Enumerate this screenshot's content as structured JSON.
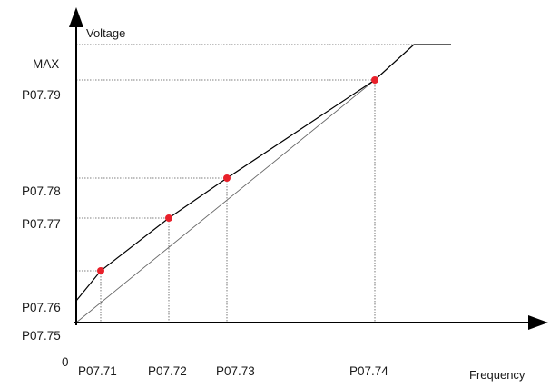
{
  "axes": {
    "y_title": "Voltage",
    "x_title": "Frequency",
    "origin_label": "0"
  },
  "y_ticks": {
    "max": "MAX",
    "p79": "P07.79",
    "p78": "P07.78",
    "p77": "P07.77",
    "p76": "P07.76",
    "p75": "P07.75"
  },
  "x_ticks": {
    "p71": "P07.71",
    "p72": "P07.72",
    "p73": "P07.73",
    "p74": "P07.74"
  },
  "colors": {
    "axis": "#000000",
    "curve": "#000000",
    "guide": "#555555",
    "point": "#e8202a"
  }
}
